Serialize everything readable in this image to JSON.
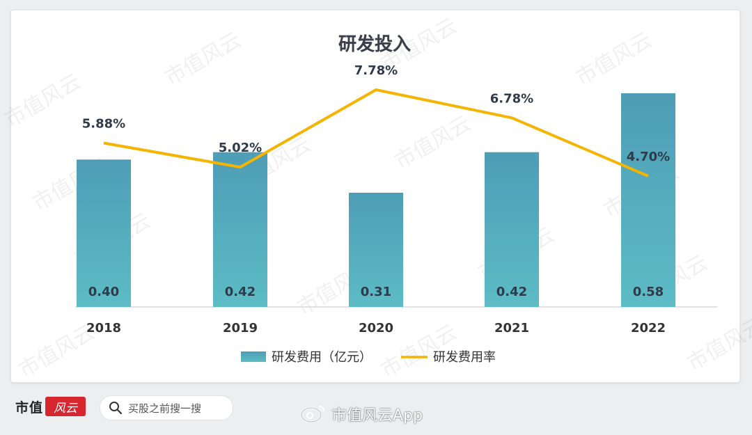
{
  "chart_data": {
    "type": "bar+line",
    "title": "研发投入",
    "categories": [
      "2018",
      "2019",
      "2020",
      "2021",
      "2022"
    ],
    "series": [
      {
        "name": "研发费用（亿元）",
        "kind": "bar",
        "values": [
          0.4,
          0.42,
          0.31,
          0.42,
          0.58
        ],
        "labels": [
          "0.40",
          "0.42",
          "0.31",
          "0.42",
          "0.58"
        ],
        "color": "#5ab3c0"
      },
      {
        "name": "研发费用率",
        "kind": "line",
        "values": [
          5.88,
          5.02,
          7.78,
          6.78,
          4.7
        ],
        "labels": [
          "5.88%",
          "5.02%",
          "7.78%",
          "6.78%",
          "4.70%"
        ],
        "color": "#f5b400"
      }
    ],
    "legend_position": "bottom",
    "grid": false
  },
  "footer": {
    "brand_text": "市值",
    "brand_seal_text": "风云",
    "search_placeholder": "买股之前搜一搜",
    "weibo_text": "市值风云App"
  },
  "watermark_text": "市值风云"
}
